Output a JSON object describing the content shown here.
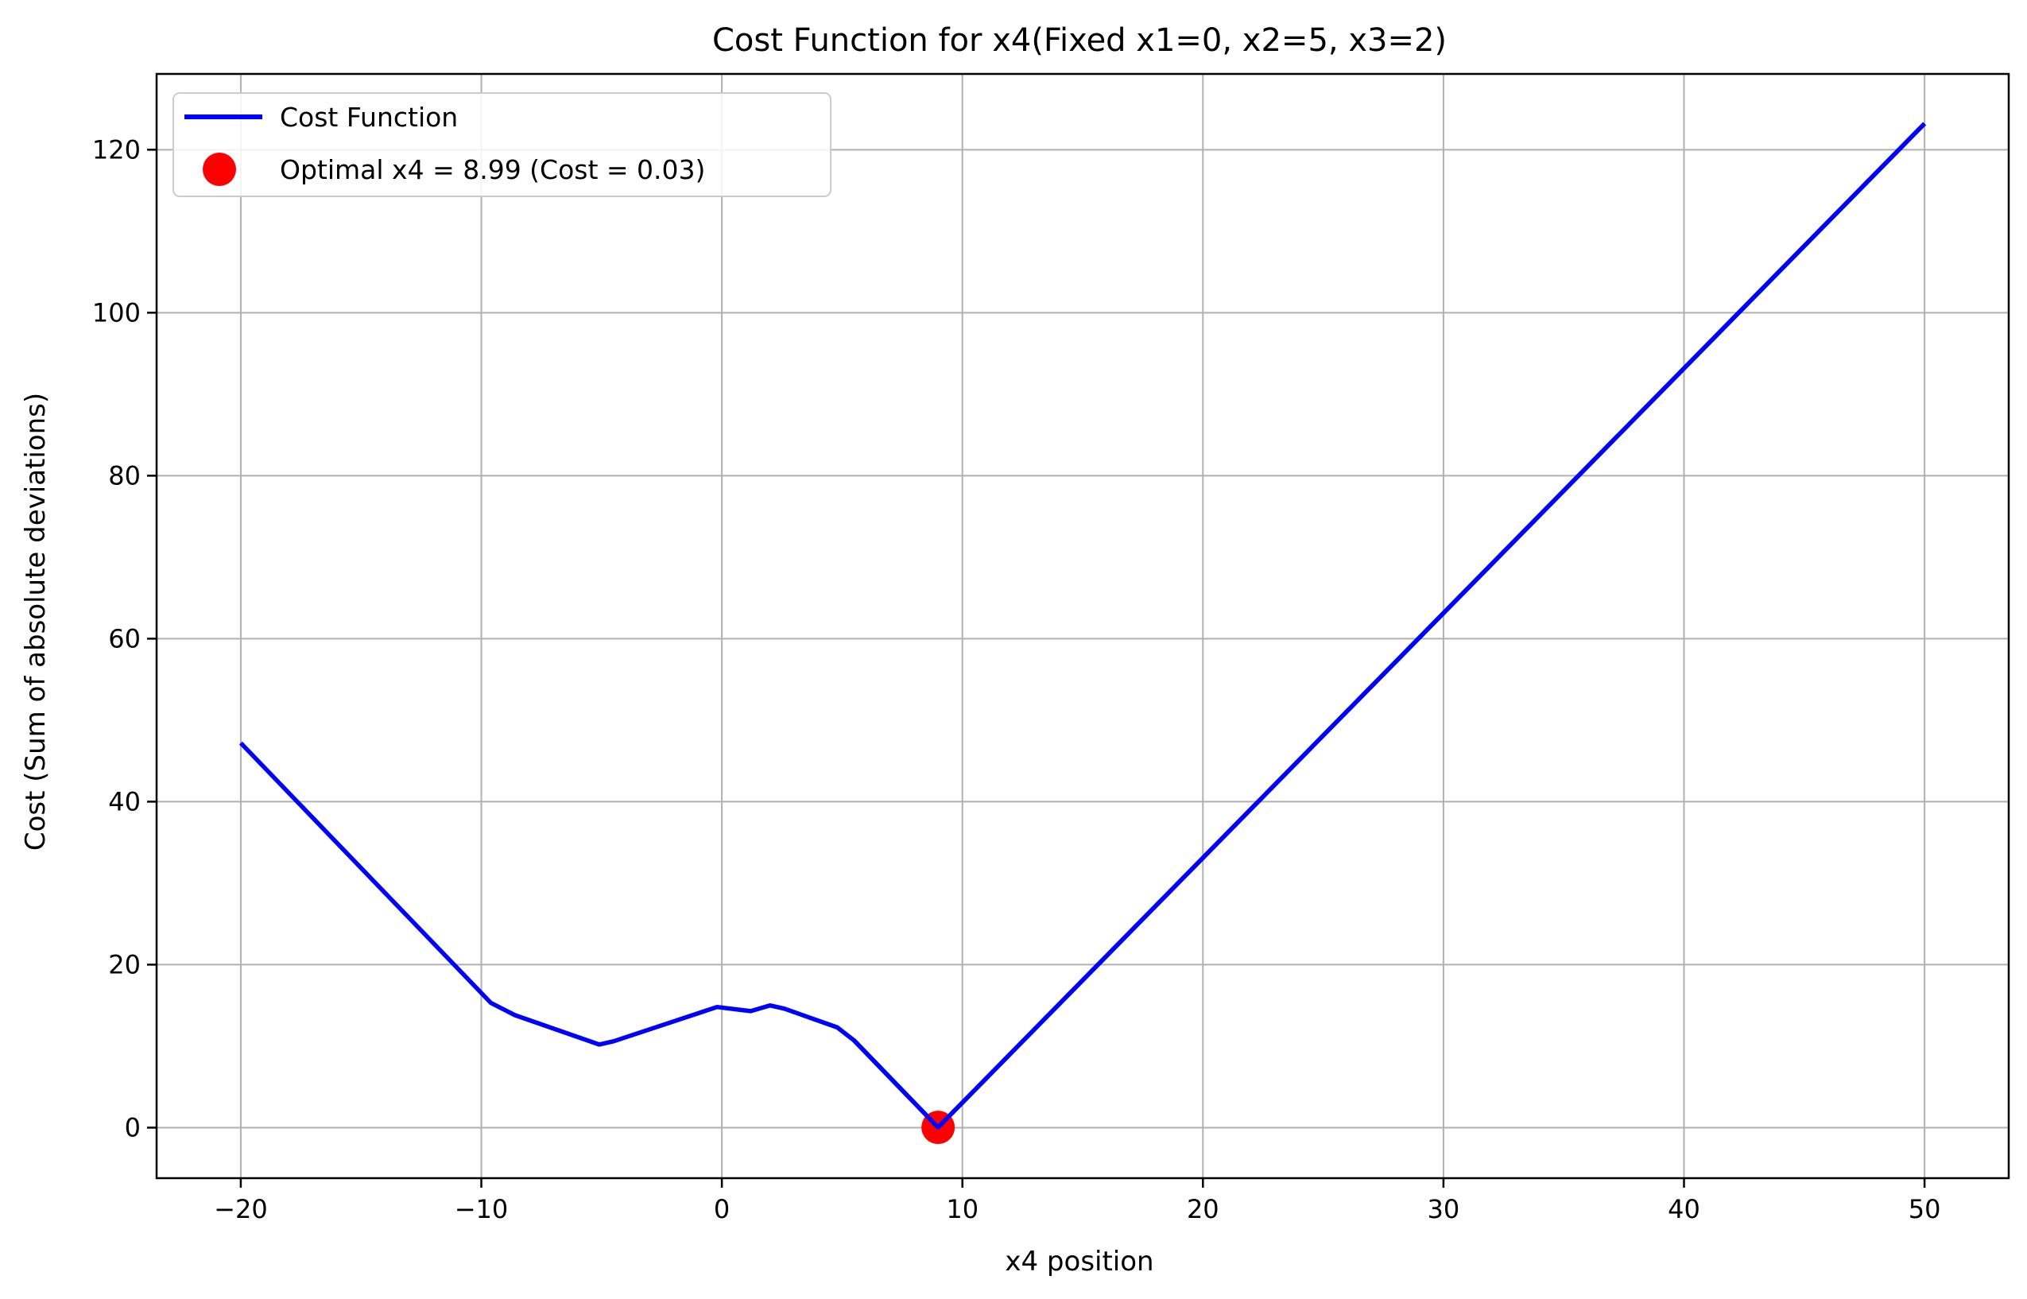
{
  "chart_data": {
    "type": "line",
    "title": "Cost Function for x4(Fixed x1=0, x2=5, x3=2)",
    "xlabel": "x4 position",
    "ylabel": "Cost (Sum of absolute deviations)",
    "xlim": [
      -23.5,
      53.5
    ],
    "ylim": [
      -6.2,
      129.3
    ],
    "grid": true,
    "legend_position": "top-left",
    "x_ticks": [
      -20,
      -10,
      0,
      10,
      20,
      30,
      40,
      50
    ],
    "x_tick_labels": [
      "−20",
      "−10",
      "0",
      "10",
      "20",
      "30",
      "40",
      "50"
    ],
    "y_ticks": [
      0,
      20,
      40,
      60,
      80,
      100,
      120
    ],
    "y_tick_labels": [
      "0",
      "20",
      "40",
      "60",
      "80",
      "100",
      "120"
    ],
    "series": [
      {
        "name": "Cost Function",
        "color": "#0000ff",
        "x": [
          -20,
          -9.6,
          -8.6,
          -5.1,
          -4.5,
          -0.2,
          1.2,
          2.0,
          2.6,
          4.8,
          5.5,
          8.99,
          50
        ],
        "y": [
          47.2,
          15.3,
          13.8,
          10.2,
          10.6,
          14.8,
          14.3,
          15.0,
          14.6,
          12.3,
          10.7,
          0.03,
          123.2
        ]
      }
    ],
    "optimal_point": {
      "label": "Optimal x4 = 8.99 (Cost = 0.03)",
      "x": 8.99,
      "y": 0.03,
      "color": "#ff0000"
    }
  }
}
